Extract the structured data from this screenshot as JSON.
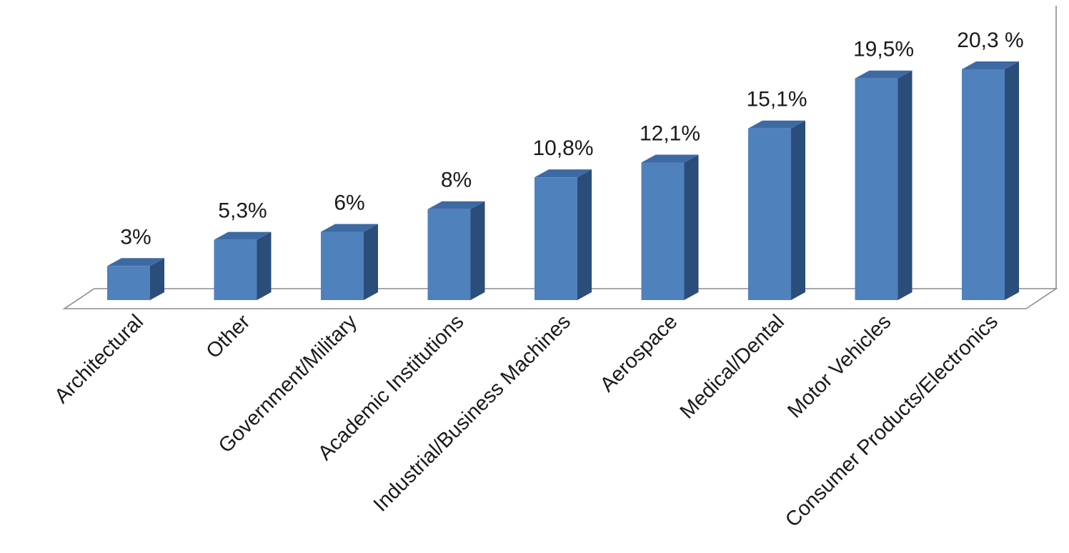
{
  "chart_data": {
    "type": "bar",
    "style": "3d-column",
    "categories": [
      "Architectural",
      "Other",
      "Government/Military",
      "Academic Institutions",
      "Industrial/Business Machines",
      "Aerospace",
      "Medical/Dental",
      "Motor Vehicles",
      "Consumer Products/Electronics"
    ],
    "values": [
      3,
      5.3,
      6,
      8,
      10.8,
      12.1,
      15.1,
      19.5,
      20.3
    ],
    "data_labels": [
      "3%",
      "5,3%",
      "6%",
      "8%",
      "10,8%",
      "12,1%",
      "15,1%",
      "19,5%",
      "20,3 %"
    ],
    "title": "",
    "xlabel": "",
    "ylabel": "",
    "ylim": [
      0,
      20.3
    ],
    "grid": false,
    "legend": "none",
    "colors": {
      "bar_front": "#4f81bd",
      "bar_top": "#3e6aa3",
      "bar_side": "#2b4d79",
      "axis": "#8c8c8c",
      "text": "#1a1a1a"
    }
  }
}
